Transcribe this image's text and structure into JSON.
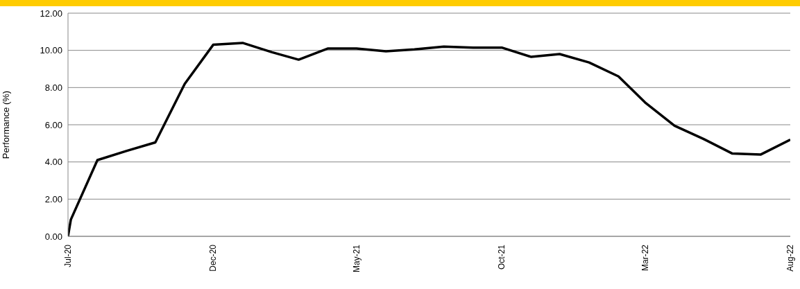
{
  "chart_data": {
    "type": "line",
    "ylabel": "Performance (%)",
    "x": [
      "2020-07-01",
      "2020-07-04",
      "2020-08-01",
      "2020-09-01",
      "2020-10-01",
      "2020-11-01",
      "2020-12-01",
      "2021-01-01",
      "2021-02-01",
      "2021-03-01",
      "2021-04-01",
      "2021-05-01",
      "2021-06-01",
      "2021-07-01",
      "2021-08-01",
      "2021-09-01",
      "2021-10-01",
      "2021-11-01",
      "2021-12-01",
      "2022-01-01",
      "2022-02-01",
      "2022-03-01",
      "2022-04-01",
      "2022-05-01",
      "2022-06-01",
      "2022-07-01",
      "2022-08-01"
    ],
    "series": [
      {
        "color": "#000000",
        "values": [
          0,
          0.9,
          4.1,
          4.6,
          5.05,
          8.2,
          10.3,
          10.4,
          9.9,
          9.5,
          10.1,
          10.1,
          9.95,
          10.05,
          10.2,
          10.15,
          10.15,
          9.65,
          9.8,
          9.35,
          8.6,
          7.2,
          5.95,
          5.25,
          4.45,
          4.4,
          5.2
        ]
      }
    ],
    "xlim": [
      "2020-07-01",
      "2022-08-01"
    ],
    "xticks": [
      {
        "value": "2020-07-01",
        "label": "Jul-20"
      },
      {
        "value": "2020-12-01",
        "label": "Dec-20"
      },
      {
        "value": "2021-05-01",
        "label": "May-21"
      },
      {
        "value": "2021-10-01",
        "label": "Oct-21"
      },
      {
        "value": "2022-03-01",
        "label": "Mar-22"
      },
      {
        "value": "2022-08-01",
        "label": "Aug-22"
      }
    ],
    "ylim": [
      0,
      12
    ],
    "yticks": [
      {
        "value": 0,
        "label": "0.00"
      },
      {
        "value": 2,
        "label": "2.00"
      },
      {
        "value": 4,
        "label": "4.00"
      },
      {
        "value": 6,
        "label": "6.00"
      },
      {
        "value": 8,
        "label": "8.00"
      },
      {
        "value": 10,
        "label": "10.00"
      },
      {
        "value": 12,
        "label": "12.00"
      }
    ],
    "grid": "y",
    "line_style": "solid",
    "marker": "none"
  }
}
